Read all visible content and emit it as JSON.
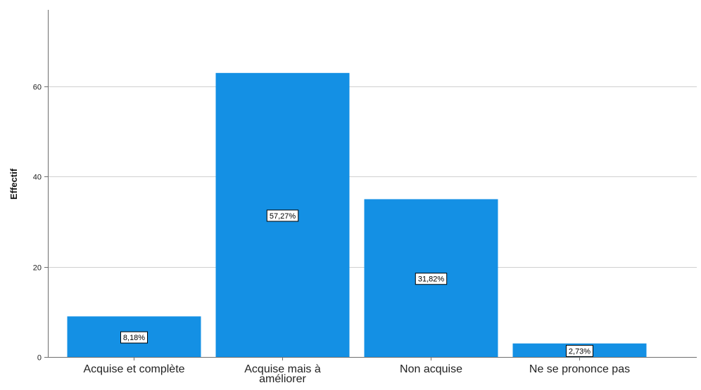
{
  "chart_data": {
    "type": "bar",
    "ylabel": "Effectif",
    "xlabel": "",
    "title": "",
    "categories": [
      "Acquise et complète",
      "Acquise mais à améliorer",
      "Non acquise",
      "Ne se prononce pas"
    ],
    "category_lines": [
      [
        "Acquise et complète"
      ],
      [
        "Acquise mais à",
        "améliorer"
      ],
      [
        "Non acquise"
      ],
      [
        "Ne se prononce pas"
      ]
    ],
    "values": [
      9,
      63,
      35,
      3
    ],
    "data_labels": [
      "8,18%",
      "57,27%",
      "31,82%",
      "2,73%"
    ],
    "ylim": [
      0,
      77
    ],
    "yticks": [
      0,
      20,
      40,
      60
    ],
    "grid": true,
    "legend": "none",
    "bar_color": "#1490e4",
    "grid_color": "#d0d0d0",
    "axis_color": "#6e6e6e"
  }
}
